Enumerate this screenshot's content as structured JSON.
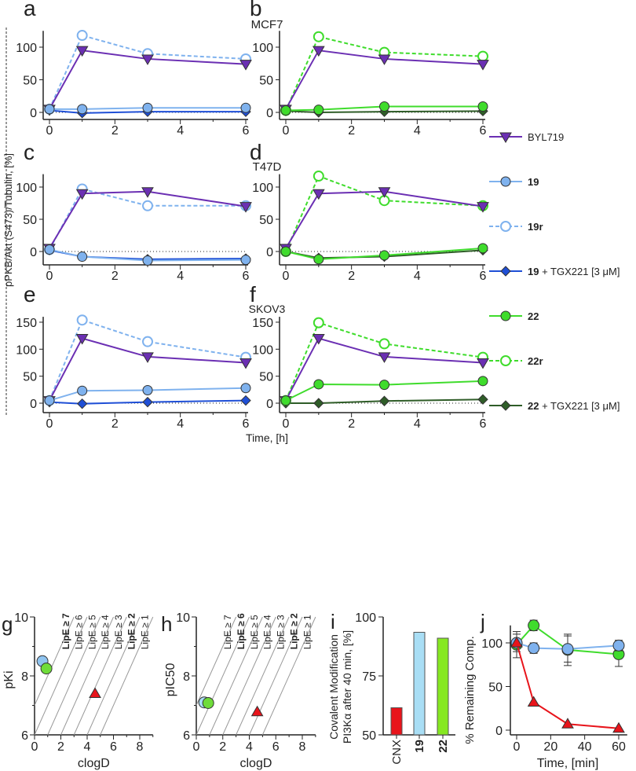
{
  "chart_data": [
    {
      "type": "line",
      "panels": [
        "a",
        "b",
        "c",
        "d",
        "e",
        "f"
      ],
      "ylabel": "pPKB/Akt (S473)/Tubulin, [%]",
      "xlabel": "Time, [h]",
      "x": [
        0,
        1,
        3,
        6
      ],
      "xticks": [
        "0",
        "2",
        "4",
        "6"
      ],
      "cell_lines": [
        {
          "name": "MCF7",
          "yticks": [
            "0",
            "50",
            "100"
          ],
          "ylim": [
            -5,
            125
          ],
          "left": {
            "BYL719": [
              5,
              95,
              82,
              74
            ],
            "19": [
              5,
              5,
              7,
              7
            ],
            "19r": [
              5,
              118,
              90,
              82
            ],
            "19 + TGX221 [3 μM]": [
              3,
              -1,
              1,
              1
            ]
          },
          "right": {
            "BYL719": [
              5,
              95,
              82,
              74
            ],
            "22": [
              3,
              4,
              9,
              9
            ],
            "22r": [
              3,
              116,
              92,
              86
            ],
            "22 + TGX221 [3 μM]": [
              2,
              0,
              1,
              2
            ]
          }
        },
        {
          "name": "T47D",
          "yticks": [
            "0",
            "50",
            "100"
          ],
          "ylim": [
            -20,
            120
          ],
          "left": {
            "BYL719": [
              5,
              90,
              93,
              70
            ],
            "19": [
              3,
              -8,
              -14,
              -13
            ],
            "19r": [
              3,
              97,
              71,
              71
            ],
            "19 + TGX221 [3 μM]": [
              2,
              -8,
              -12,
              -11
            ]
          },
          "right": {
            "BYL719": [
              5,
              90,
              93,
              70
            ],
            "22": [
              0,
              -12,
              -6,
              5
            ],
            "22r": [
              0,
              117,
              79,
              71
            ],
            "22 + TGX221 [3 μM]": [
              0,
              -10,
              -8,
              2
            ]
          }
        },
        {
          "name": "SKOV3",
          "yticks": [
            "0",
            "50",
            "100",
            "150"
          ],
          "ylim": [
            -5,
            160
          ],
          "left": {
            "BYL719": [
              5,
              120,
              86,
              75
            ],
            "19": [
              5,
              23,
              24,
              28
            ],
            "19r": [
              5,
              154,
              114,
              85
            ],
            "19 + TGX221 [3 μM]": [
              2,
              -1,
              2,
              5
            ]
          },
          "right": {
            "BYL719": [
              5,
              120,
              86,
              75
            ],
            "22": [
              5,
              35,
              34,
              41
            ],
            "22r": [
              5,
              149,
              110,
              85
            ],
            "22 + TGX221 [3 μM]": [
              0,
              0,
              4,
              7
            ]
          }
        }
      ],
      "legend": [
        {
          "label": "BYL719",
          "bold": "",
          "color": "#6b2fb3",
          "marker": "tri-down",
          "dash": false
        },
        {
          "label": "19",
          "bold": "19",
          "color": "#7fb2ee",
          "marker": "circle",
          "dash": false
        },
        {
          "label": "19r",
          "bold": "19r",
          "color": "#7fb2ee",
          "marker": "open",
          "dash": true
        },
        {
          "label": "19 + TGX221 [3 μM]",
          "bold": "19",
          "color": "#1f4fd6",
          "marker": "diamond",
          "dash": false
        },
        {
          "label": "22",
          "bold": "22",
          "color": "#3fdc2c",
          "marker": "circle",
          "dash": false
        },
        {
          "label": "22r",
          "bold": "22r",
          "color": "#3fdc2c",
          "marker": "open",
          "dash": true
        },
        {
          "label": "22 + TGX221 [3 μM]",
          "bold": "22",
          "color": "#2f5d28",
          "marker": "diamond",
          "dash": false
        }
      ]
    },
    {
      "type": "scatter",
      "panel": "g",
      "xlabel": "clogD",
      "ylabel": "pKi",
      "xlim": [
        0,
        9
      ],
      "ylim": [
        6,
        10
      ],
      "xticks": [
        "0",
        "2",
        "4",
        "6",
        "8"
      ],
      "yticks": [
        "6",
        "8",
        "10"
      ],
      "lipe_lines": [
        "LipE ≥ 7",
        "LipE ≥ 6",
        "LipE ≥ 5",
        "LipE ≥ 4",
        "LipE ≥ 3",
        "LipE ≥ 2",
        "LipE ≥ 1"
      ],
      "bold_lipe": [
        7,
        2
      ],
      "points": [
        {
          "name": "19",
          "x": 0.6,
          "y": 8.5,
          "color": "#8fc4f0",
          "marker": "circle"
        },
        {
          "name": "22",
          "x": 0.9,
          "y": 8.25,
          "color": "#6fdc3a",
          "marker": "circle"
        },
        {
          "name": "CNX",
          "x": 4.6,
          "y": 7.4,
          "color": "#e8141b",
          "marker": "triangle"
        }
      ]
    },
    {
      "type": "scatter",
      "panel": "h",
      "xlabel": "clogD",
      "ylabel": "pIC50",
      "xlim": [
        0,
        9
      ],
      "ylim": [
        6,
        10
      ],
      "xticks": [
        "0",
        "2",
        "4",
        "6",
        "8"
      ],
      "yticks": [
        "6",
        "8",
        "10"
      ],
      "lipe_lines": [
        "LipE ≥ 7",
        "LipE ≥ 6",
        "LipE ≥ 5",
        "LipE ≥ 4",
        "LipE ≥ 3",
        "LipE ≥ 2",
        "LipE ≥ 1"
      ],
      "bold_lipe": [
        6,
        2
      ],
      "points": [
        {
          "name": "19",
          "x": 0.6,
          "y": 7.1,
          "color": "#a9def5",
          "marker": "circle"
        },
        {
          "name": "22",
          "x": 0.9,
          "y": 7.08,
          "color": "#6fdc3a",
          "marker": "circle"
        },
        {
          "name": "CNX",
          "x": 4.6,
          "y": 6.78,
          "color": "#e8141b",
          "marker": "triangle"
        }
      ]
    },
    {
      "type": "bar",
      "panel": "i",
      "ylabel1": "Covalent Modification",
      "ylabel2": "PI3Kα after 40 min, [%]",
      "ylim": [
        50,
        100
      ],
      "yticks": [
        "50",
        "75",
        "100"
      ],
      "categories": [
        "CNX",
        "19",
        "22"
      ],
      "values": [
        61.5,
        93.5,
        91
      ],
      "colors": [
        "#e8141b",
        "#a9def5",
        "#86e821"
      ]
    },
    {
      "type": "line",
      "panel": "j",
      "xlabel": "Time, [min]",
      "ylabel": "% Remaining Comp.",
      "xlim": [
        0,
        60
      ],
      "ylim": [
        0,
        120
      ],
      "xticks": [
        "0",
        "20",
        "40",
        "60"
      ],
      "yticks": [
        "0",
        "50",
        "100"
      ],
      "series": [
        {
          "name": "22",
          "color": "#3fdc2c",
          "marker": "circle",
          "x": [
            0,
            10,
            30,
            60
          ],
          "y": [
            98,
            120,
            92,
            87
          ],
          "err": [
            15,
            6,
            18,
            14
          ]
        },
        {
          "name": "19",
          "color": "#7fb2ee",
          "marker": "circle",
          "x": [
            0,
            10,
            30,
            60
          ],
          "y": [
            100,
            94,
            93,
            97
          ],
          "err": [
            10,
            6,
            15,
            6
          ]
        },
        {
          "name": "CNX",
          "color": "#e8141b",
          "marker": "triangle",
          "x": [
            0,
            10,
            30,
            60
          ],
          "y": [
            100,
            32,
            7,
            2
          ],
          "err": [
            0,
            0,
            0,
            0
          ]
        }
      ]
    }
  ]
}
